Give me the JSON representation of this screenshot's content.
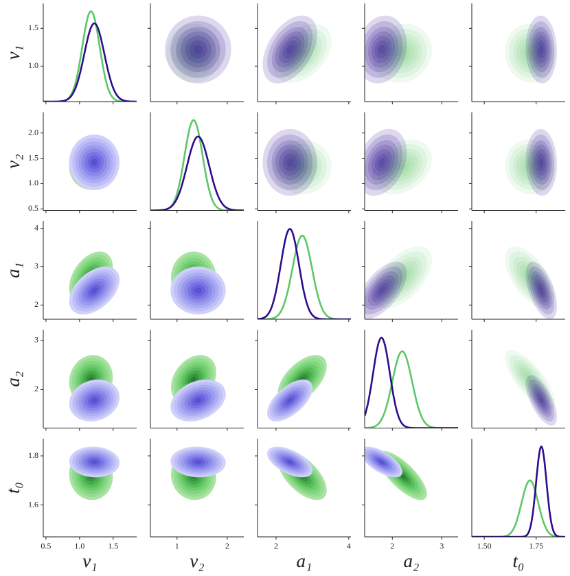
{
  "chart_data": {
    "type": "pairplot",
    "variables": [
      {
        "label": "v₁",
        "xlim": [
          0.46,
          1.85
        ],
        "xticks": [
          0.5,
          {
            "value": 1,
            "label": "1.0"
          },
          1.5
        ],
        "ylim": [
          0.53,
          1.83
        ],
        "yticks": [
          {
            "value": 1,
            "label": "1.0"
          },
          1.5
        ]
      },
      {
        "label": "v₂",
        "xlim": [
          0.47,
          2.33
        ],
        "xticks": [
          1,
          2
        ],
        "ylim": [
          0.47,
          2.41
        ],
        "yticks": [
          0.5,
          {
            "value": 1,
            "label": "1.0"
          },
          1.5,
          {
            "value": 2,
            "label": "2.0"
          }
        ]
      },
      {
        "label": "a₁",
        "xlim": [
          1.49,
          4.06
        ],
        "xticks": [
          2,
          4
        ],
        "ylim": [
          1.63,
          4.19
        ],
        "yticks": [
          2,
          3,
          4
        ]
      },
      {
        "label": "a₂",
        "xlim": [
          1.44,
          3.33
        ],
        "xticks": [
          2,
          3
        ],
        "ylim": [
          1.22,
          3.21
        ],
        "yticks": [
          2,
          3
        ]
      },
      {
        "label": "t₀",
        "xlim": [
          1.44,
          1.89
        ],
        "xticks": [
          {
            "value": 1.5,
            "label": "1.50"
          },
          1.75
        ],
        "ylim": [
          1.47,
          1.87
        ],
        "yticks": [
          1.6,
          1.8
        ]
      }
    ],
    "series": [
      {
        "color": "#5cc866",
        "fill_colors": [
          "#a9e3a4",
          "#94dc90",
          "#80d57e",
          "#6ccb6c",
          "#58bd5b",
          "#47ab4c",
          "#37953e",
          "#2a7d33"
        ],
        "mean": [
          1.17,
          1.33,
          2.72,
          2.2,
          1.72
        ],
        "sd": [
          0.13,
          0.18,
          0.27,
          0.2,
          0.04
        ],
        "corr": [
          [
            1,
            0,
            0.4,
            0.1,
            -0.05
          ],
          [
            0,
            1,
            0,
            0.3,
            -0.05
          ],
          [
            0.4,
            0,
            1,
            0.55,
            -0.6
          ],
          [
            0.1,
            0.3,
            0.55,
            1,
            -0.75
          ],
          [
            -0.05,
            -0.05,
            -0.6,
            -0.75,
            1
          ]
        ]
      },
      {
        "color": "#2e0c8e",
        "fill_colors": [
          "#d0d0fa",
          "#bfbff7",
          "#adadf3",
          "#9c9cef",
          "#8a89ea",
          "#7975e4",
          "#6962dc",
          "#5a50d2"
        ],
        "mean": [
          1.22,
          1.42,
          2.38,
          1.78,
          1.775
        ],
        "sd": [
          0.15,
          0.22,
          0.25,
          0.17,
          0.025
        ],
        "corr": [
          [
            1,
            0,
            0.45,
            0.15,
            -0.05
          ],
          [
            0,
            1,
            0,
            0.3,
            -0.05
          ],
          [
            0.45,
            0,
            1,
            0.6,
            -0.55
          ],
          [
            0.15,
            0.3,
            0.6,
            1,
            -0.65
          ],
          [
            -0.05,
            -0.05,
            -0.55,
            -0.65,
            1
          ]
        ]
      }
    ]
  }
}
